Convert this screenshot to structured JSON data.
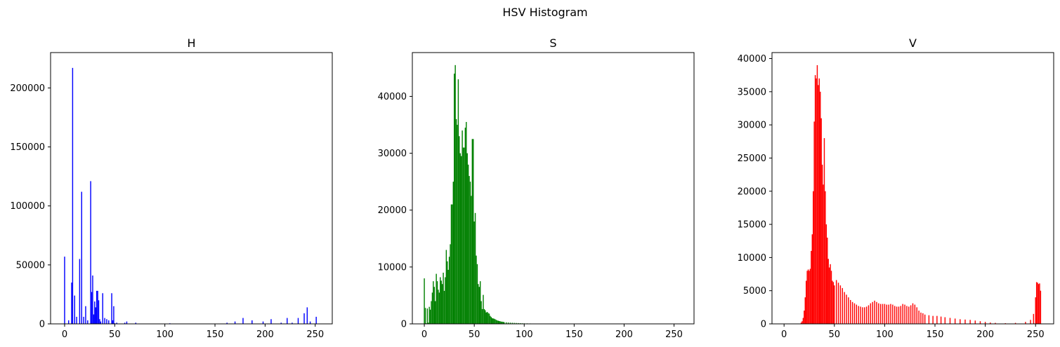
{
  "figure": {
    "suptitle": "HSV Histogram"
  },
  "chart_data": [
    {
      "type": "bar",
      "title": "H",
      "xlabel": "",
      "ylabel": "",
      "color": "#0000ff",
      "xlim": [
        -14,
        267
      ],
      "ylim": [
        0,
        230000
      ],
      "xticks": [
        0,
        50,
        100,
        150,
        200,
        250
      ],
      "yticks": [
        0,
        50000,
        100000,
        150000,
        200000
      ],
      "series": [
        {
          "x": [
            0,
            4,
            7,
            8,
            10,
            12,
            15,
            17,
            19,
            21,
            23,
            26,
            27,
            28,
            29,
            30,
            31,
            32,
            33,
            34,
            35,
            36,
            38,
            40,
            42,
            44,
            47,
            48,
            49,
            50,
            52,
            60,
            62,
            71,
            105,
            162,
            170,
            178,
            187,
            198,
            206,
            216,
            222,
            227,
            233,
            239,
            242,
            245,
            251
          ],
          "y": [
            57000,
            3000,
            35000,
            217000,
            24000,
            6000,
            55000,
            112000,
            6000,
            15000,
            3000,
            121000,
            27000,
            41000,
            8000,
            19000,
            14000,
            28000,
            28000,
            20000,
            4000,
            2000,
            26000,
            5000,
            4000,
            3000,
            26000,
            3000,
            15000,
            500,
            1000,
            1000,
            2000,
            1000,
            500,
            1000,
            2000,
            5000,
            3000,
            2000,
            4000,
            1000,
            5000,
            1000,
            5000,
            9000,
            14000,
            2000,
            6000
          ]
        }
      ]
    },
    {
      "type": "bar",
      "title": "S",
      "xlabel": "",
      "ylabel": "",
      "color": "#008000",
      "xlim": [
        -12,
        270
      ],
      "ylim": [
        0,
        47700
      ],
      "xticks": [
        0,
        50,
        100,
        150,
        200,
        250
      ],
      "yticks": [
        0,
        10000,
        20000,
        30000,
        40000
      ],
      "series": [
        {
          "x": [
            0,
            1,
            2,
            3,
            4,
            5,
            6,
            7,
            8,
            9,
            10,
            11,
            12,
            13,
            14,
            15,
            16,
            17,
            18,
            19,
            20,
            21,
            22,
            23,
            24,
            25,
            26,
            27,
            28,
            29,
            30,
            31,
            32,
            33,
            34,
            35,
            36,
            37,
            38,
            39,
            40,
            41,
            42,
            43,
            44,
            45,
            46,
            47,
            48,
            49,
            50,
            51,
            52,
            53,
            54,
            55,
            56,
            57,
            58,
            59,
            60,
            61,
            62,
            63,
            64,
            65,
            66,
            67,
            68,
            69,
            70,
            71,
            72,
            73,
            74,
            75,
            76,
            77,
            78,
            79,
            80,
            82,
            84,
            86,
            88,
            90,
            92,
            94,
            96,
            98,
            100,
            103,
            106,
            110,
            115,
            120,
            130,
            150,
            200,
            255
          ],
          "y": [
            8000,
            2800,
            100,
            2700,
            200,
            3000,
            2500,
            4000,
            5500,
            7500,
            6500,
            4000,
            8800,
            7500,
            6000,
            5500,
            8200,
            7600,
            7000,
            9000,
            5800,
            8200,
            13000,
            11000,
            9500,
            11800,
            14000,
            21000,
            21000,
            25000,
            44000,
            45500,
            36000,
            35000,
            43000,
            33000,
            30000,
            29500,
            34000,
            31000,
            31000,
            34500,
            35500,
            30000,
            28000,
            26000,
            25000,
            22500,
            32500,
            32500,
            18000,
            19500,
            12000,
            10500,
            7000,
            6500,
            7500,
            4000,
            2600,
            5100,
            2600,
            2400,
            2000,
            2100,
            1900,
            1800,
            1400,
            1200,
            1000,
            950,
            900,
            800,
            700,
            600,
            550,
            500,
            450,
            400,
            380,
            350,
            300,
            280,
            250,
            220,
            200,
            180,
            160,
            140,
            120,
            100,
            90,
            80,
            70,
            60,
            50,
            40,
            30,
            20,
            10,
            5
          ]
        }
      ]
    },
    {
      "type": "bar",
      "title": "V",
      "xlabel": "",
      "ylabel": "",
      "color": "#ff0000",
      "xlim": [
        -12,
        268
      ],
      "ylim": [
        0,
        40900
      ],
      "xticks": [
        0,
        50,
        100,
        150,
        200,
        250
      ],
      "yticks": [
        0,
        5000,
        10000,
        15000,
        20000,
        25000,
        30000,
        35000,
        40000
      ],
      "series": [
        {
          "x": [
            0,
            10,
            15,
            17,
            18,
            19,
            20,
            21,
            22,
            23,
            24,
            25,
            26,
            27,
            28,
            29,
            30,
            31,
            32,
            33,
            34,
            35,
            36,
            37,
            38,
            39,
            40,
            41,
            42,
            43,
            44,
            45,
            46,
            47,
            48,
            49,
            50,
            52,
            54,
            56,
            58,
            60,
            62,
            64,
            66,
            68,
            70,
            72,
            74,
            76,
            78,
            80,
            82,
            84,
            86,
            88,
            90,
            92,
            94,
            96,
            98,
            100,
            102,
            104,
            106,
            108,
            110,
            112,
            114,
            116,
            118,
            120,
            122,
            124,
            126,
            128,
            130,
            132,
            134,
            136,
            138,
            140,
            144,
            148,
            152,
            156,
            160,
            165,
            170,
            175,
            180,
            185,
            190,
            195,
            200,
            205,
            210,
            220,
            230,
            240,
            245,
            248,
            250,
            251,
            252,
            253,
            254,
            255
          ],
          "y": [
            0,
            0,
            50,
            200,
            400,
            900,
            2000,
            4000,
            6500,
            8000,
            8200,
            8000,
            8300,
            11000,
            13500,
            20000,
            30500,
            37500,
            37000,
            39000,
            36000,
            37000,
            35000,
            31000,
            24000,
            21000,
            28000,
            20000,
            15000,
            13000,
            9800,
            8500,
            9000,
            8000,
            6500,
            6300,
            5800,
            6600,
            6200,
            5800,
            5400,
            4800,
            4400,
            4000,
            3600,
            3300,
            3100,
            2900,
            2700,
            2600,
            2500,
            2500,
            2600,
            2800,
            3100,
            3300,
            3500,
            3300,
            3100,
            3000,
            3000,
            3000,
            2900,
            2900,
            3000,
            2900,
            2700,
            2600,
            2600,
            2700,
            3000,
            2900,
            2700,
            2600,
            2800,
            3100,
            2900,
            2500,
            2000,
            1700,
            1600,
            1400,
            1300,
            1200,
            1200,
            1100,
            1000,
            900,
            800,
            700,
            650,
            600,
            500,
            400,
            300,
            200,
            150,
            100,
            150,
            300,
            600,
            1500,
            4000,
            6300,
            6200,
            6000,
            6100,
            5000
          ]
        }
      ]
    }
  ]
}
